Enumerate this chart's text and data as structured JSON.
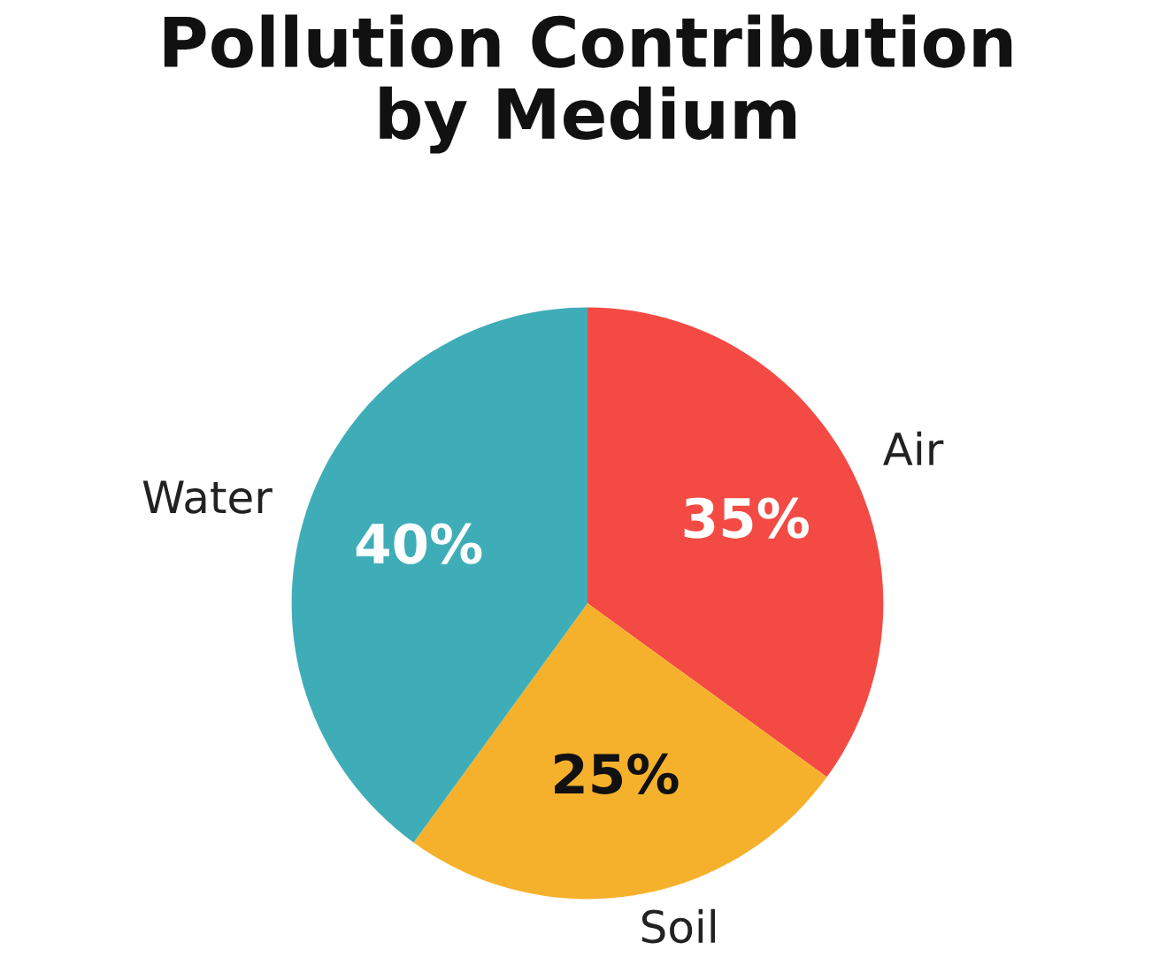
{
  "chart_data": {
    "type": "pie",
    "title": "Pollution Contribution\nby Medium",
    "categories": [
      "Air",
      "Soil",
      "Water"
    ],
    "values": [
      35,
      25,
      40
    ],
    "colors": [
      "#f44a44",
      "#f6b12c",
      "#3fadb8"
    ],
    "value_labels": [
      "35%",
      "25%",
      "40%"
    ],
    "legend": false
  }
}
